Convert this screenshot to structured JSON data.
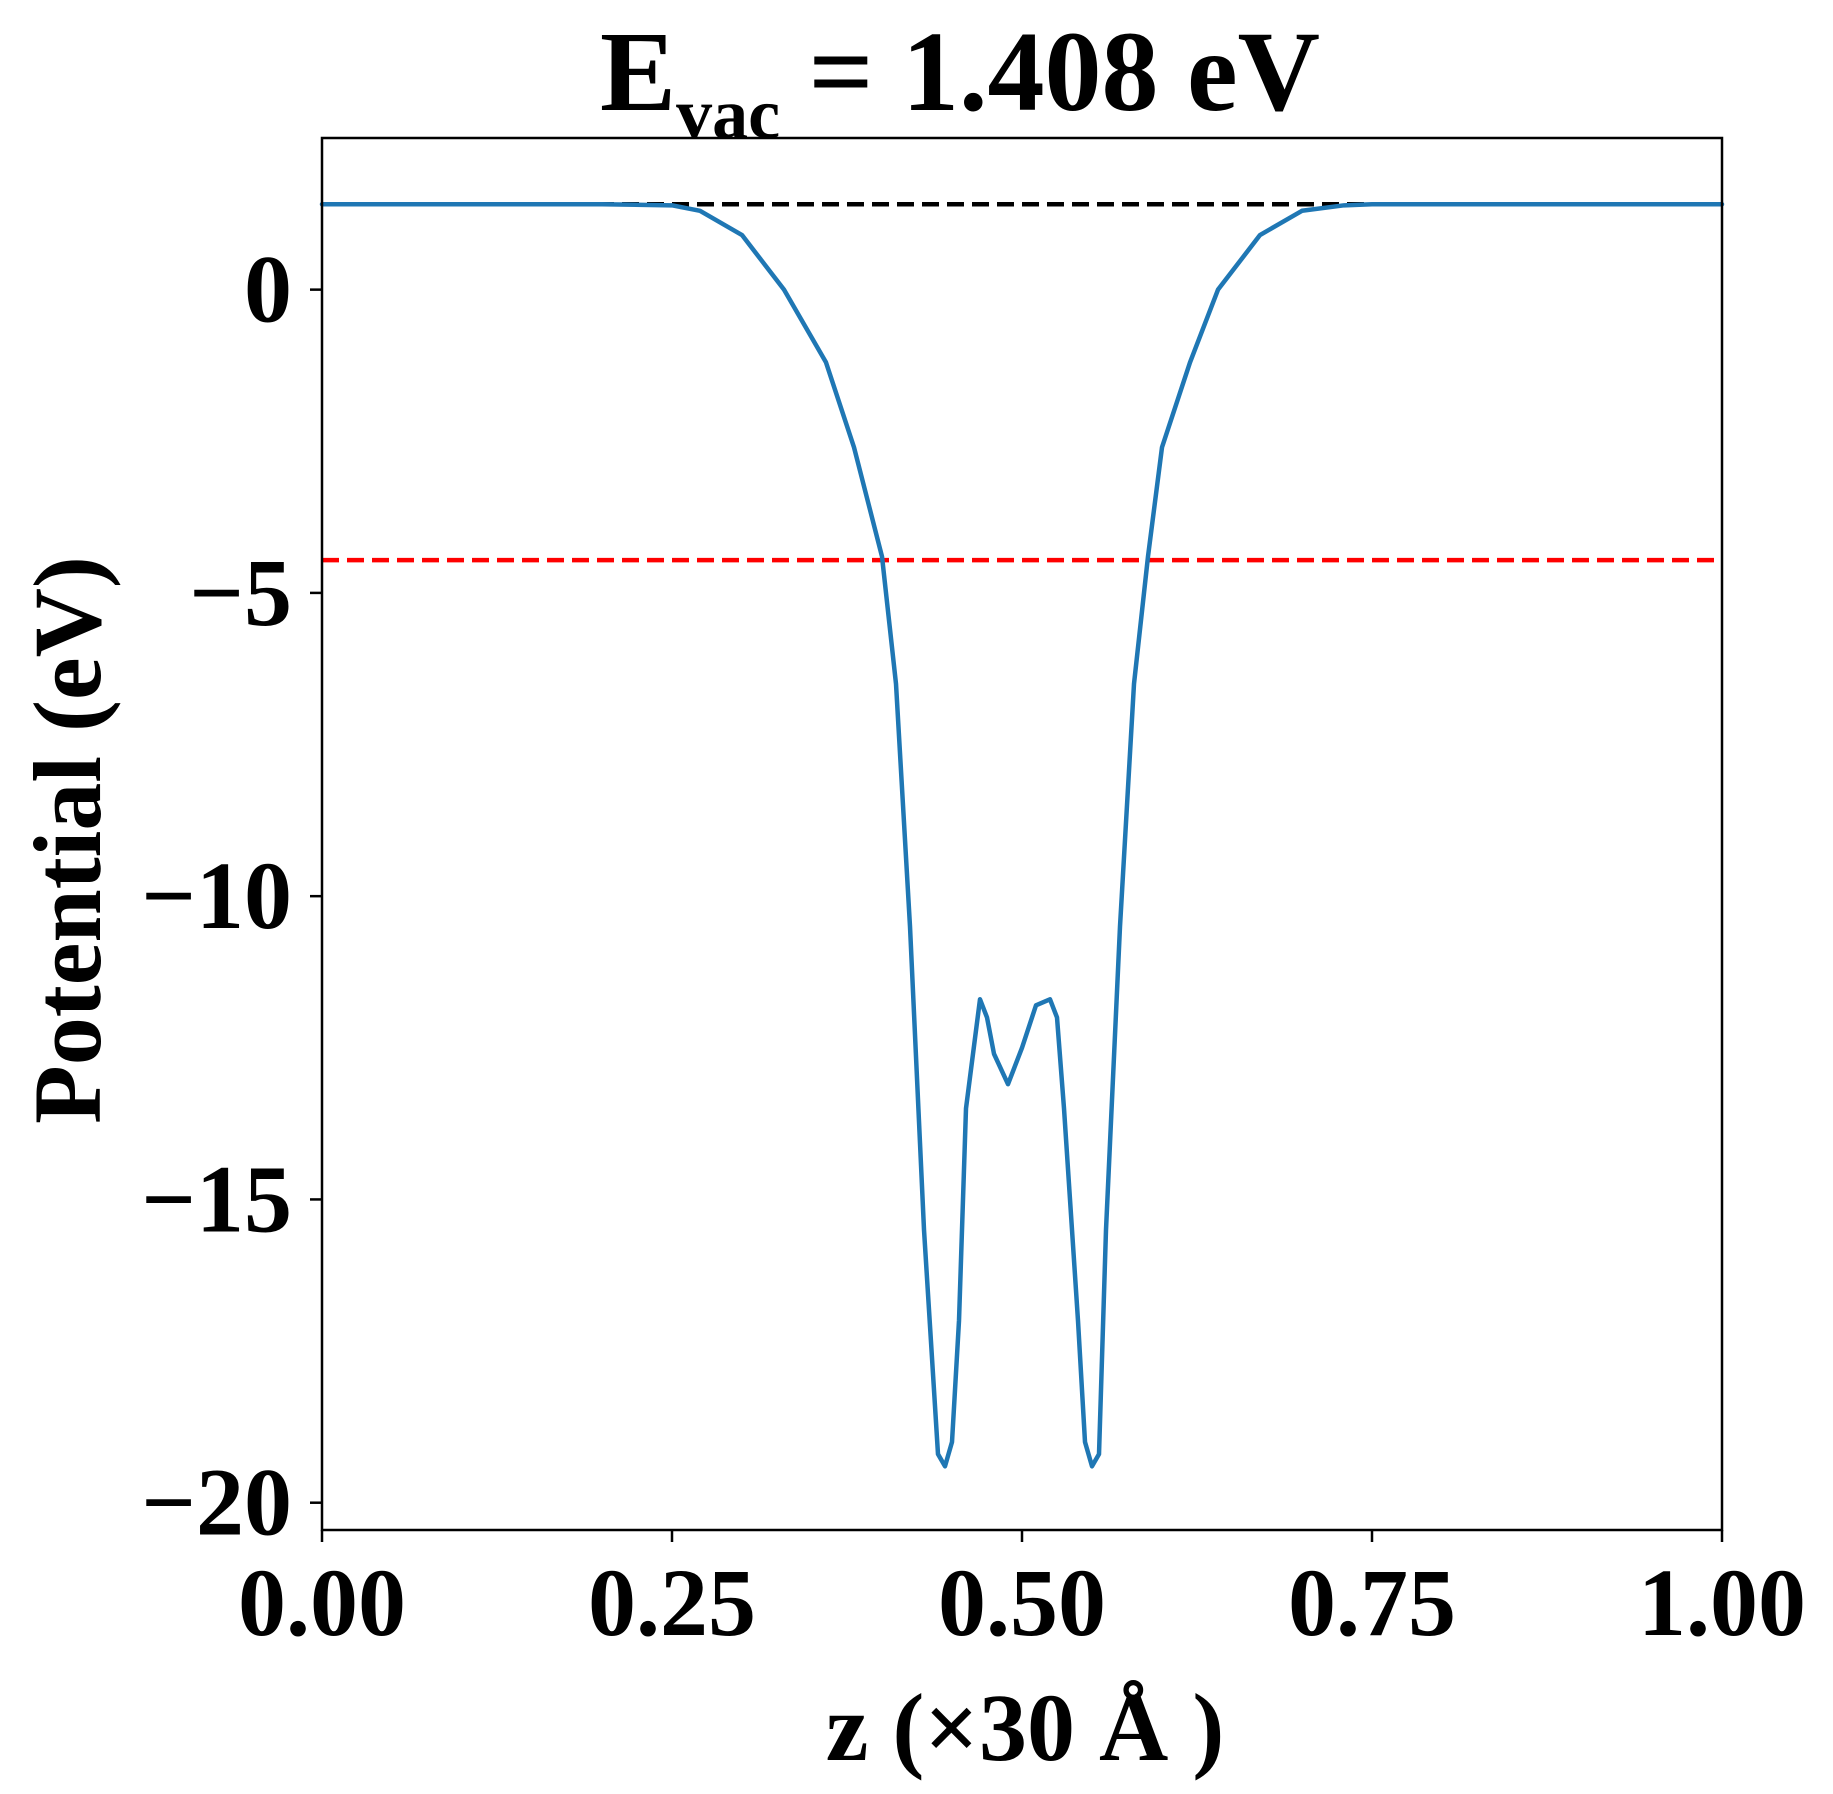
{
  "chart_data": {
    "type": "line",
    "title": {
      "main": "E",
      "subscript": "vac",
      "rest": " = 1.408 eV"
    },
    "xlabel": "z (×30 Å )",
    "ylabel": "Potential (eV)",
    "xlim": [
      0.0,
      1.0
    ],
    "ylim": [
      -20.45,
      2.5
    ],
    "xticks": [
      0.0,
      0.25,
      0.5,
      0.75,
      1.0
    ],
    "xtick_labels": [
      "0.00",
      "0.25",
      "0.50",
      "0.75",
      "1.00"
    ],
    "yticks": [
      0,
      -5,
      -10,
      -15,
      -20
    ],
    "ytick_labels": [
      "0",
      "−5",
      "−10",
      "−15",
      "−20"
    ],
    "grid": false,
    "reference_lines": [
      {
        "y": 1.408,
        "color": "#000000",
        "style": "dashed"
      },
      {
        "y": -4.46,
        "color": "#ff0000",
        "style": "dashed"
      }
    ],
    "series": [
      {
        "color": "#1f77b4",
        "x": [
          0.0,
          0.05,
          0.1,
          0.15,
          0.2,
          0.25,
          0.27,
          0.3,
          0.33,
          0.36,
          0.38,
          0.4,
          0.41,
          0.42,
          0.43,
          0.44,
          0.445,
          0.45,
          0.455,
          0.46,
          0.47,
          0.475,
          0.48,
          0.49,
          0.5,
          0.51,
          0.52,
          0.525,
          0.53,
          0.54,
          0.545,
          0.55,
          0.555,
          0.56,
          0.57,
          0.58,
          0.59,
          0.6,
          0.62,
          0.64,
          0.67,
          0.7,
          0.73,
          0.75,
          0.8,
          0.85,
          0.9,
          0.95,
          1.0
        ],
        "y": [
          1.408,
          1.408,
          1.408,
          1.408,
          1.408,
          1.39,
          1.3,
          0.9,
          0.0,
          -1.2,
          -2.6,
          -4.4,
          -6.5,
          -10.5,
          -15.5,
          -19.2,
          -19.4,
          -19.0,
          -17.0,
          -13.5,
          -11.7,
          -12.0,
          -12.6,
          -13.1,
          -12.5,
          -11.8,
          -11.7,
          -12.0,
          -13.5,
          -17.0,
          -19.0,
          -19.4,
          -19.2,
          -15.5,
          -10.5,
          -6.5,
          -4.4,
          -2.6,
          -1.2,
          0.0,
          0.9,
          1.3,
          1.39,
          1.408,
          1.408,
          1.408,
          1.408,
          1.408,
          1.408
        ]
      }
    ]
  }
}
